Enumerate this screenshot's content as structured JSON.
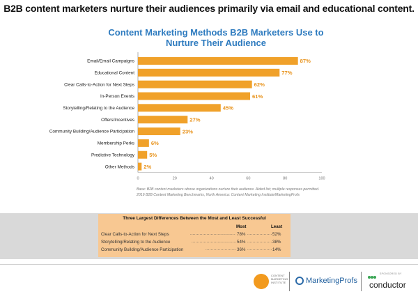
{
  "headline": "B2B content marketers nurture their audiences primarily via email and educational content.",
  "chart_data": {
    "type": "bar",
    "orientation": "horizontal",
    "title": "Content Marketing Methods B2B Marketers Use to Nurture Their Audience",
    "categories": [
      "Email/Email Campaigns",
      "Educational Content",
      "Clear Calls-to-Action for Next Steps",
      "In-Person Events",
      "Storytelling/Relating to the Audience",
      "Offers/Incentives",
      "Community Building/Audience Participation",
      "Membership Perks",
      "Predictive Technology",
      "Other Methods"
    ],
    "values": [
      87,
      77,
      62,
      61,
      45,
      27,
      23,
      6,
      5,
      2
    ],
    "value_labels": [
      "87%",
      "77%",
      "62%",
      "61%",
      "45%",
      "27%",
      "23%",
      "6%",
      "5%",
      "2%"
    ],
    "xticks": [
      0,
      20,
      40,
      60,
      80,
      100
    ],
    "xlim": [
      0,
      100
    ],
    "bar_color": "#f0a12a",
    "label_color": "#e8921a"
  },
  "base_note": "Base: B2B content marketers whose organizations nurture their audience. Aided list; multiple responses permitted.\n2019 B2B Content Marketing Benchmarks, North America: Content Marketing Institute/MarketingProfs",
  "differences": {
    "title": "Three Largest Differences Between the Most and Least Successful",
    "most_header": "Most",
    "least_header": "Least",
    "rows": [
      {
        "label": "Clear Calls-to-Action for Next Steps",
        "most": "78%",
        "least": "52%"
      },
      {
        "label": "Storytelling/Relating to the Audience",
        "most": "54%",
        "least": "38%"
      },
      {
        "label": "Community Building/Audience Participation",
        "most": "36%",
        "least": "14%"
      }
    ]
  },
  "footer": {
    "cmi_line1": "CONTENT",
    "cmi_line2": "MARKETING",
    "cmi_line3": "INSTITUTE",
    "marketingprofs": "MarketingProfs",
    "sponsored_by": "SPONSORED BY",
    "conductor": "conductor"
  }
}
